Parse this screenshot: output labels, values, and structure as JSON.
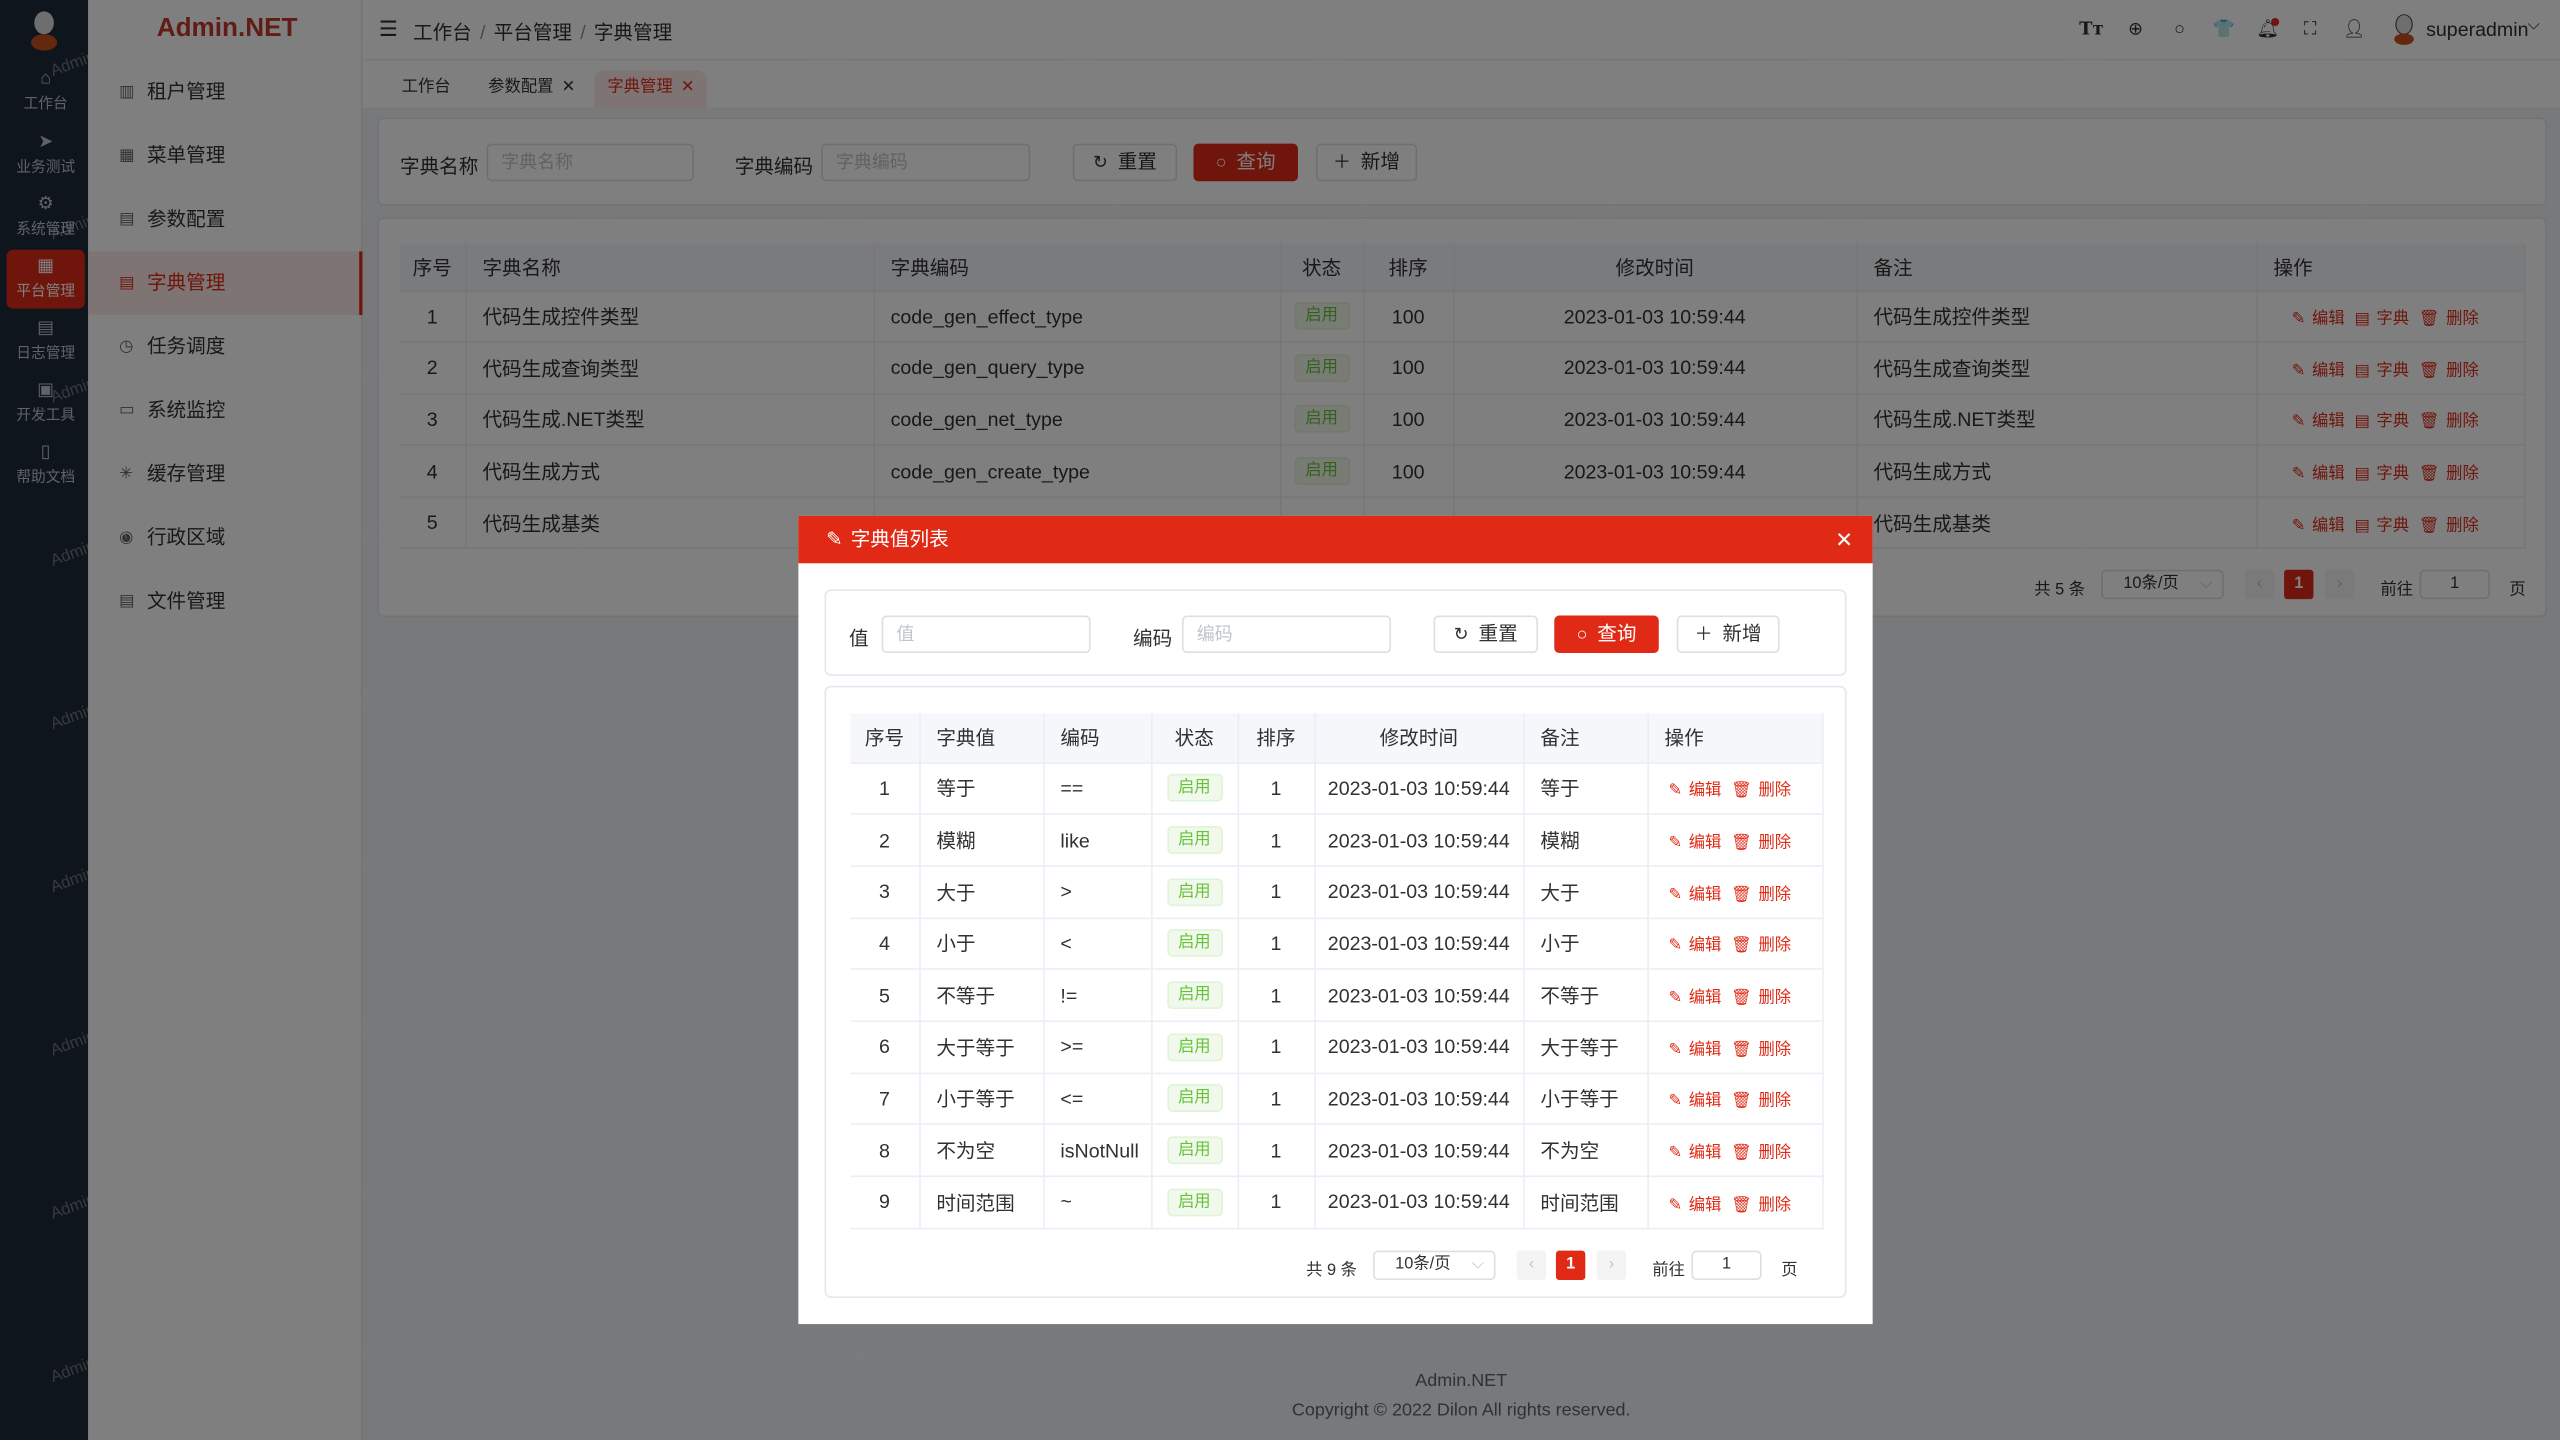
{
  "brand": "Admin.NET",
  "rail": [
    {
      "label": "工作台",
      "icon": "home-icon"
    },
    {
      "label": "业务测试",
      "icon": "navigation-icon"
    },
    {
      "label": "系统管理",
      "icon": "gear-icon"
    },
    {
      "label": "平台管理",
      "icon": "grid-icon",
      "active": true
    },
    {
      "label": "日志管理",
      "icon": "document-icon"
    },
    {
      "label": "开发工具",
      "icon": "chip-icon"
    },
    {
      "label": "帮助文档",
      "icon": "notebook-icon"
    }
  ],
  "menu": [
    {
      "label": "租户管理",
      "icon": "building-icon"
    },
    {
      "label": "菜单管理",
      "icon": "grid-icon"
    },
    {
      "label": "参数配置",
      "icon": "document-icon"
    },
    {
      "label": "字典管理",
      "icon": "book-icon",
      "active": true
    },
    {
      "label": "任务调度",
      "icon": "alarm-clock-icon"
    },
    {
      "label": "系统监控",
      "icon": "monitor-icon"
    },
    {
      "label": "缓存管理",
      "icon": "loading-icon"
    },
    {
      "label": "行政区域",
      "icon": "location-icon"
    },
    {
      "label": "文件管理",
      "icon": "file-icon"
    }
  ],
  "breadcrumb": [
    "工作台",
    "平台管理",
    "字典管理"
  ],
  "header": {
    "username": "superadmin",
    "icons": [
      "font-size-icon",
      "language-icon",
      "search-icon",
      "skin-icon",
      "bell-icon",
      "fullscreen-icon",
      "user-icon"
    ]
  },
  "tags": [
    {
      "label": "工作台",
      "closable": false
    },
    {
      "label": "参数配置",
      "closable": true
    },
    {
      "label": "字典管理",
      "closable": true,
      "active": true
    }
  ],
  "search": {
    "name_label": "字典名称",
    "name_placeholder": "字典名称",
    "code_label": "字典编码",
    "code_placeholder": "字典编码",
    "reset": "重置",
    "query": "查询",
    "add": "新增"
  },
  "main_table": {
    "columns": [
      "序号",
      "字典名称",
      "字典编码",
      "状态",
      "排序",
      "修改时间",
      "备注",
      "操作"
    ],
    "rows": [
      [
        "1",
        "代码生成控件类型",
        "code_gen_effect_type",
        "启用",
        "100",
        "2023-01-03 10:59:44",
        "代码生成控件类型"
      ],
      [
        "2",
        "代码生成查询类型",
        "code_gen_query_type",
        "启用",
        "100",
        "2023-01-03 10:59:44",
        "代码生成查询类型"
      ],
      [
        "3",
        "代码生成.NET类型",
        "code_gen_net_type",
        "启用",
        "100",
        "2023-01-03 10:59:44",
        "代码生成.NET类型"
      ],
      [
        "4",
        "代码生成方式",
        "code_gen_create_type",
        "启用",
        "100",
        "2023-01-03 10:59:44",
        "代码生成方式"
      ],
      [
        "5",
        "代码生成基类",
        "",
        "",
        "",
        "",
        "代码生成基类"
      ]
    ],
    "actions": [
      "编辑",
      "字典",
      "删除"
    ],
    "pagination": {
      "total": "共 5 条",
      "page_size": "10条/页",
      "current": "1",
      "goto_label": "前往",
      "goto_value": "1",
      "page_suffix": "页"
    }
  },
  "dialog": {
    "title": "字典值列表",
    "search": {
      "value_label": "值",
      "value_placeholder": "值",
      "code_label": "编码",
      "code_placeholder": "编码",
      "reset": "重置",
      "query": "查询",
      "add": "新增"
    },
    "columns": [
      "序号",
      "字典值",
      "编码",
      "状态",
      "排序",
      "修改时间",
      "备注",
      "操作"
    ],
    "rows": [
      [
        "1",
        "等于",
        "==",
        "启用",
        "1",
        "2023-01-03 10:59:44",
        "等于"
      ],
      [
        "2",
        "模糊",
        "like",
        "启用",
        "1",
        "2023-01-03 10:59:44",
        "模糊"
      ],
      [
        "3",
        "大于",
        ">",
        "启用",
        "1",
        "2023-01-03 10:59:44",
        "大于"
      ],
      [
        "4",
        "小于",
        "<",
        "启用",
        "1",
        "2023-01-03 10:59:44",
        "小于"
      ],
      [
        "5",
        "不等于",
        "!=",
        "启用",
        "1",
        "2023-01-03 10:59:44",
        "不等于"
      ],
      [
        "6",
        "大于等于",
        ">=",
        "启用",
        "1",
        "2023-01-03 10:59:44",
        "大于等于"
      ],
      [
        "7",
        "小于等于",
        "<=",
        "启用",
        "1",
        "2023-01-03 10:59:44",
        "小于等于"
      ],
      [
        "8",
        "不为空",
        "isNotNull",
        "启用",
        "1",
        "2023-01-03 10:59:44",
        "不为空"
      ],
      [
        "9",
        "时间范围",
        "~",
        "启用",
        "1",
        "2023-01-03 10:59:44",
        "时间范围"
      ]
    ],
    "actions": [
      "编辑",
      "删除"
    ],
    "pagination": {
      "total": "共 9 条",
      "page_size": "10条/页",
      "current": "1",
      "goto_label": "前往",
      "goto_value": "1",
      "page_suffix": "页"
    }
  },
  "footer": {
    "name": "Admin.NET",
    "copyright": "Copyright © 2022 Dilon All rights reserved."
  },
  "watermark": "Admin.NET",
  "colors": {
    "primary": "#e02a16",
    "sidebar": "#1f2a38",
    "status_green": "#67c23a"
  }
}
